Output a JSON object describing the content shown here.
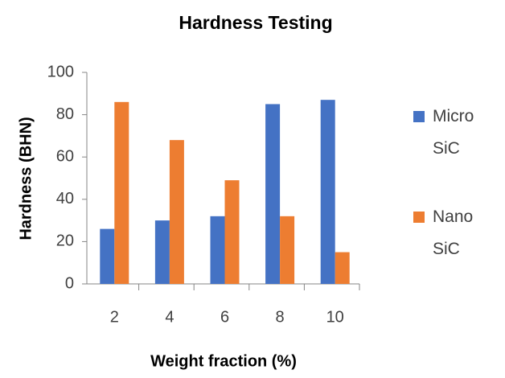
{
  "chart_data": {
    "type": "bar",
    "title": "Hardness Testing",
    "x_label": "Weight fraction (%)",
    "y_label": "Hardness (BHN)",
    "categories": [
      "2",
      "4",
      "6",
      "8",
      "10"
    ],
    "series": [
      {
        "name": "Micro SiC",
        "color": "#4472c4",
        "values": [
          26,
          30,
          32,
          85,
          87
        ]
      },
      {
        "name": "Nano SiC",
        "color": "#ed7d31",
        "values": [
          86,
          68,
          49,
          32,
          15
        ]
      }
    ],
    "ylim": [
      0,
      100
    ],
    "yticks": [
      0,
      20,
      40,
      60,
      80,
      100
    ],
    "grid": false,
    "legend": "right"
  }
}
